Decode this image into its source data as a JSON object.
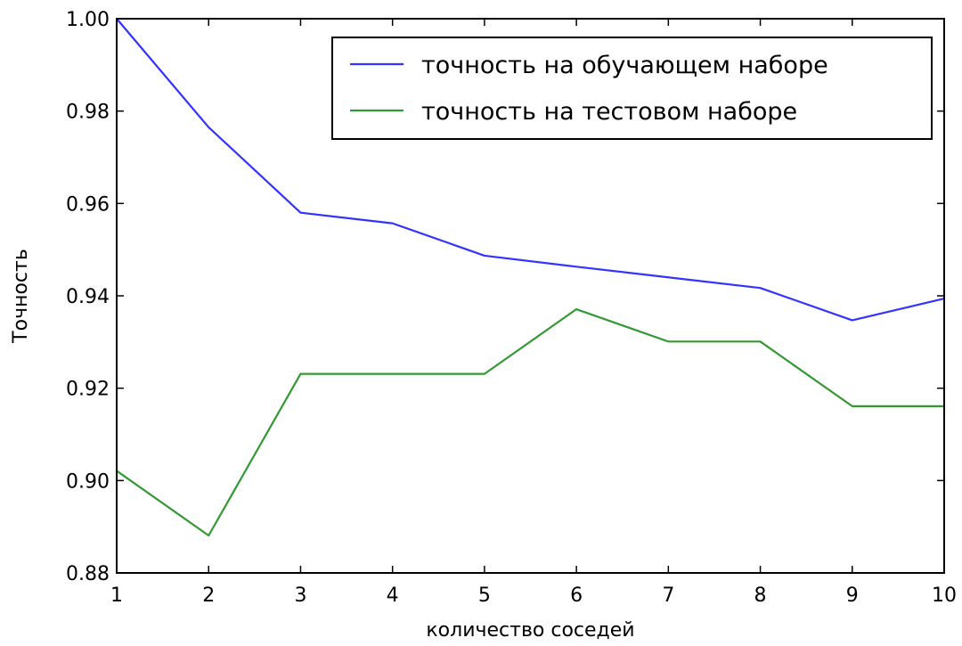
{
  "chart_data": {
    "type": "line",
    "title": "",
    "xlabel": "количество соседей",
    "ylabel": "Точность",
    "x": [
      1,
      2,
      3,
      4,
      5,
      6,
      7,
      8,
      9,
      10
    ],
    "xlim": [
      1,
      10
    ],
    "ylim": [
      0.88,
      1.0
    ],
    "xticks": [
      "1",
      "2",
      "3",
      "4",
      "5",
      "6",
      "7",
      "8",
      "9",
      "10"
    ],
    "yticks": [
      "0.88",
      "0.90",
      "0.92",
      "0.94",
      "0.96",
      "0.98",
      "1.00"
    ],
    "grid": false,
    "legend_position": "top-right",
    "series": [
      {
        "name": "точность на обучающем наборе",
        "color": "#3333ff",
        "values": [
          1.0,
          0.9765,
          0.958,
          0.9557,
          0.9487,
          0.9463,
          0.944,
          0.9417,
          0.9347,
          0.9394
        ]
      },
      {
        "name": "точность на тестовом наборе",
        "color": "#339933",
        "values": [
          0.9021,
          0.8881,
          0.9231,
          0.9231,
          0.9231,
          0.9371,
          0.9301,
          0.9301,
          0.9161,
          0.9161
        ]
      }
    ]
  }
}
